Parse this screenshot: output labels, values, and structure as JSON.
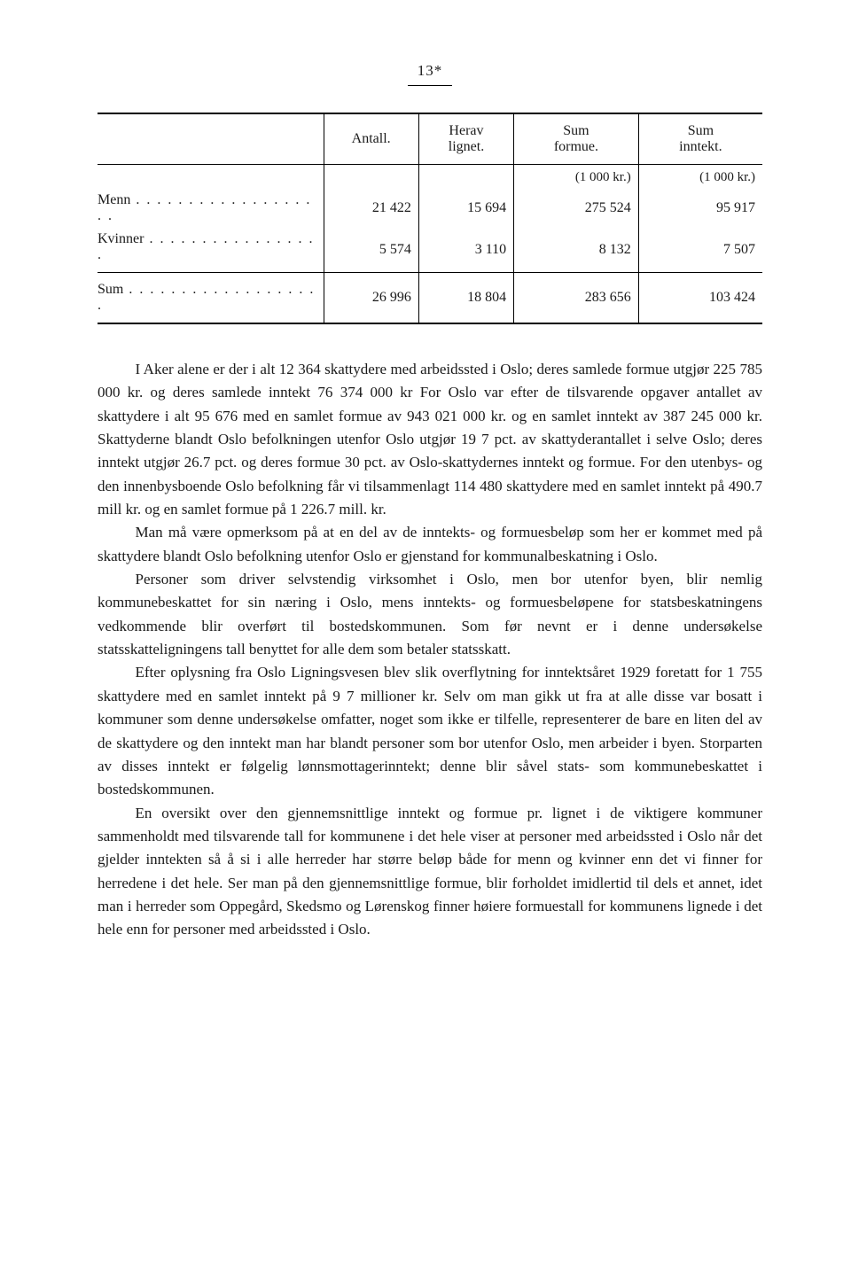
{
  "page_number": "13*",
  "table": {
    "headers": [
      "",
      "Antall.",
      "Herav\nlignet.",
      "Sum\nformue.",
      "Sum\ninntekt."
    ],
    "unit_row": [
      "",
      "",
      "",
      "(1 000 kr.)",
      "(1 000 kr.)"
    ],
    "rows": [
      {
        "label": "Menn",
        "vals": [
          "21 422",
          "15 694",
          "275 524",
          "95 917"
        ]
      },
      {
        "label": "Kvinner",
        "vals": [
          "5 574",
          "3 110",
          "8 132",
          "7 507"
        ]
      }
    ],
    "sum_row": {
      "label": "Sum",
      "vals": [
        "26 996",
        "18 804",
        "283 656",
        "103 424"
      ]
    }
  },
  "paragraphs": [
    "I Aker alene er der i alt 12 364 skattydere med arbeidssted i Oslo; deres samlede formue utgjør 225 785 000 kr. og deres samlede inntekt 76 374 000 kr For Oslo var efter de tilsvarende opgaver antallet av skattydere i alt 95 676 med en samlet formue av 943 021 000 kr. og en samlet inntekt av 387 245 000 kr. Skattyderne blandt Oslo befolkningen utenfor Oslo utgjør 19 7 pct. av skattyderantallet i selve Oslo; deres inntekt utgjør 26.7 pct. og deres formue 30 pct. av Oslo-skattydernes inntekt og formue. For den utenbys- og den innenbysboende Oslo befolkning får vi tilsammenlagt 114 480 skattydere med en samlet inntekt på 490.7 mill kr. og en samlet formue på 1 226.7 mill. kr.",
    "Man må være opmerksom på at en del av de inntekts- og formuesbeløp som her er kommet med på skattydere blandt Oslo befolkning utenfor Oslo er gjenstand for kommunalbeskatning i Oslo.",
    "Personer som driver selvstendig virksomhet i Oslo, men bor utenfor byen, blir nemlig kommunebeskattet for sin næring i Oslo, mens inntekts- og formuesbeløpene for statsbeskatningens vedkommende blir overført til bostedskommunen. Som før nevnt er i denne undersøkelse statsskatteligningens tall benyttet for alle dem som betaler statsskatt.",
    "Efter oplysning fra Oslo Ligningsvesen blev slik overflytning for inntektsåret 1929 foretatt for 1 755 skattydere med en samlet inntekt på 9 7 millioner kr. Selv om man gikk ut fra at alle disse var bosatt i kommuner som denne undersøkelse omfatter, noget som ikke er tilfelle, representerer de bare en liten del av de skattydere og den inntekt man har blandt personer som bor utenfor Oslo, men arbeider i byen. Storparten av disses inntekt er følgelig lønnsmottagerinntekt; denne blir såvel stats- som kommunebeskattet i bostedskommunen.",
    "En oversikt over den gjennemsnittlige inntekt og formue pr. lignet i de viktigere kommuner sammenholdt med tilsvarende tall for kommunene i det hele viser at personer med arbeidssted i Oslo når det gjelder inntekten så å si i alle herreder har større beløp både for menn og kvinner enn det vi finner for herredene i det hele. Ser man på den gjennemsnittlige formue, blir forholdet imidlertid til dels et annet, idet man i herreder som Oppegård, Skedsmo og Lørenskog finner høiere formuestall for kommunens lignede i det hele enn for personer med arbeidssted i Oslo."
  ]
}
